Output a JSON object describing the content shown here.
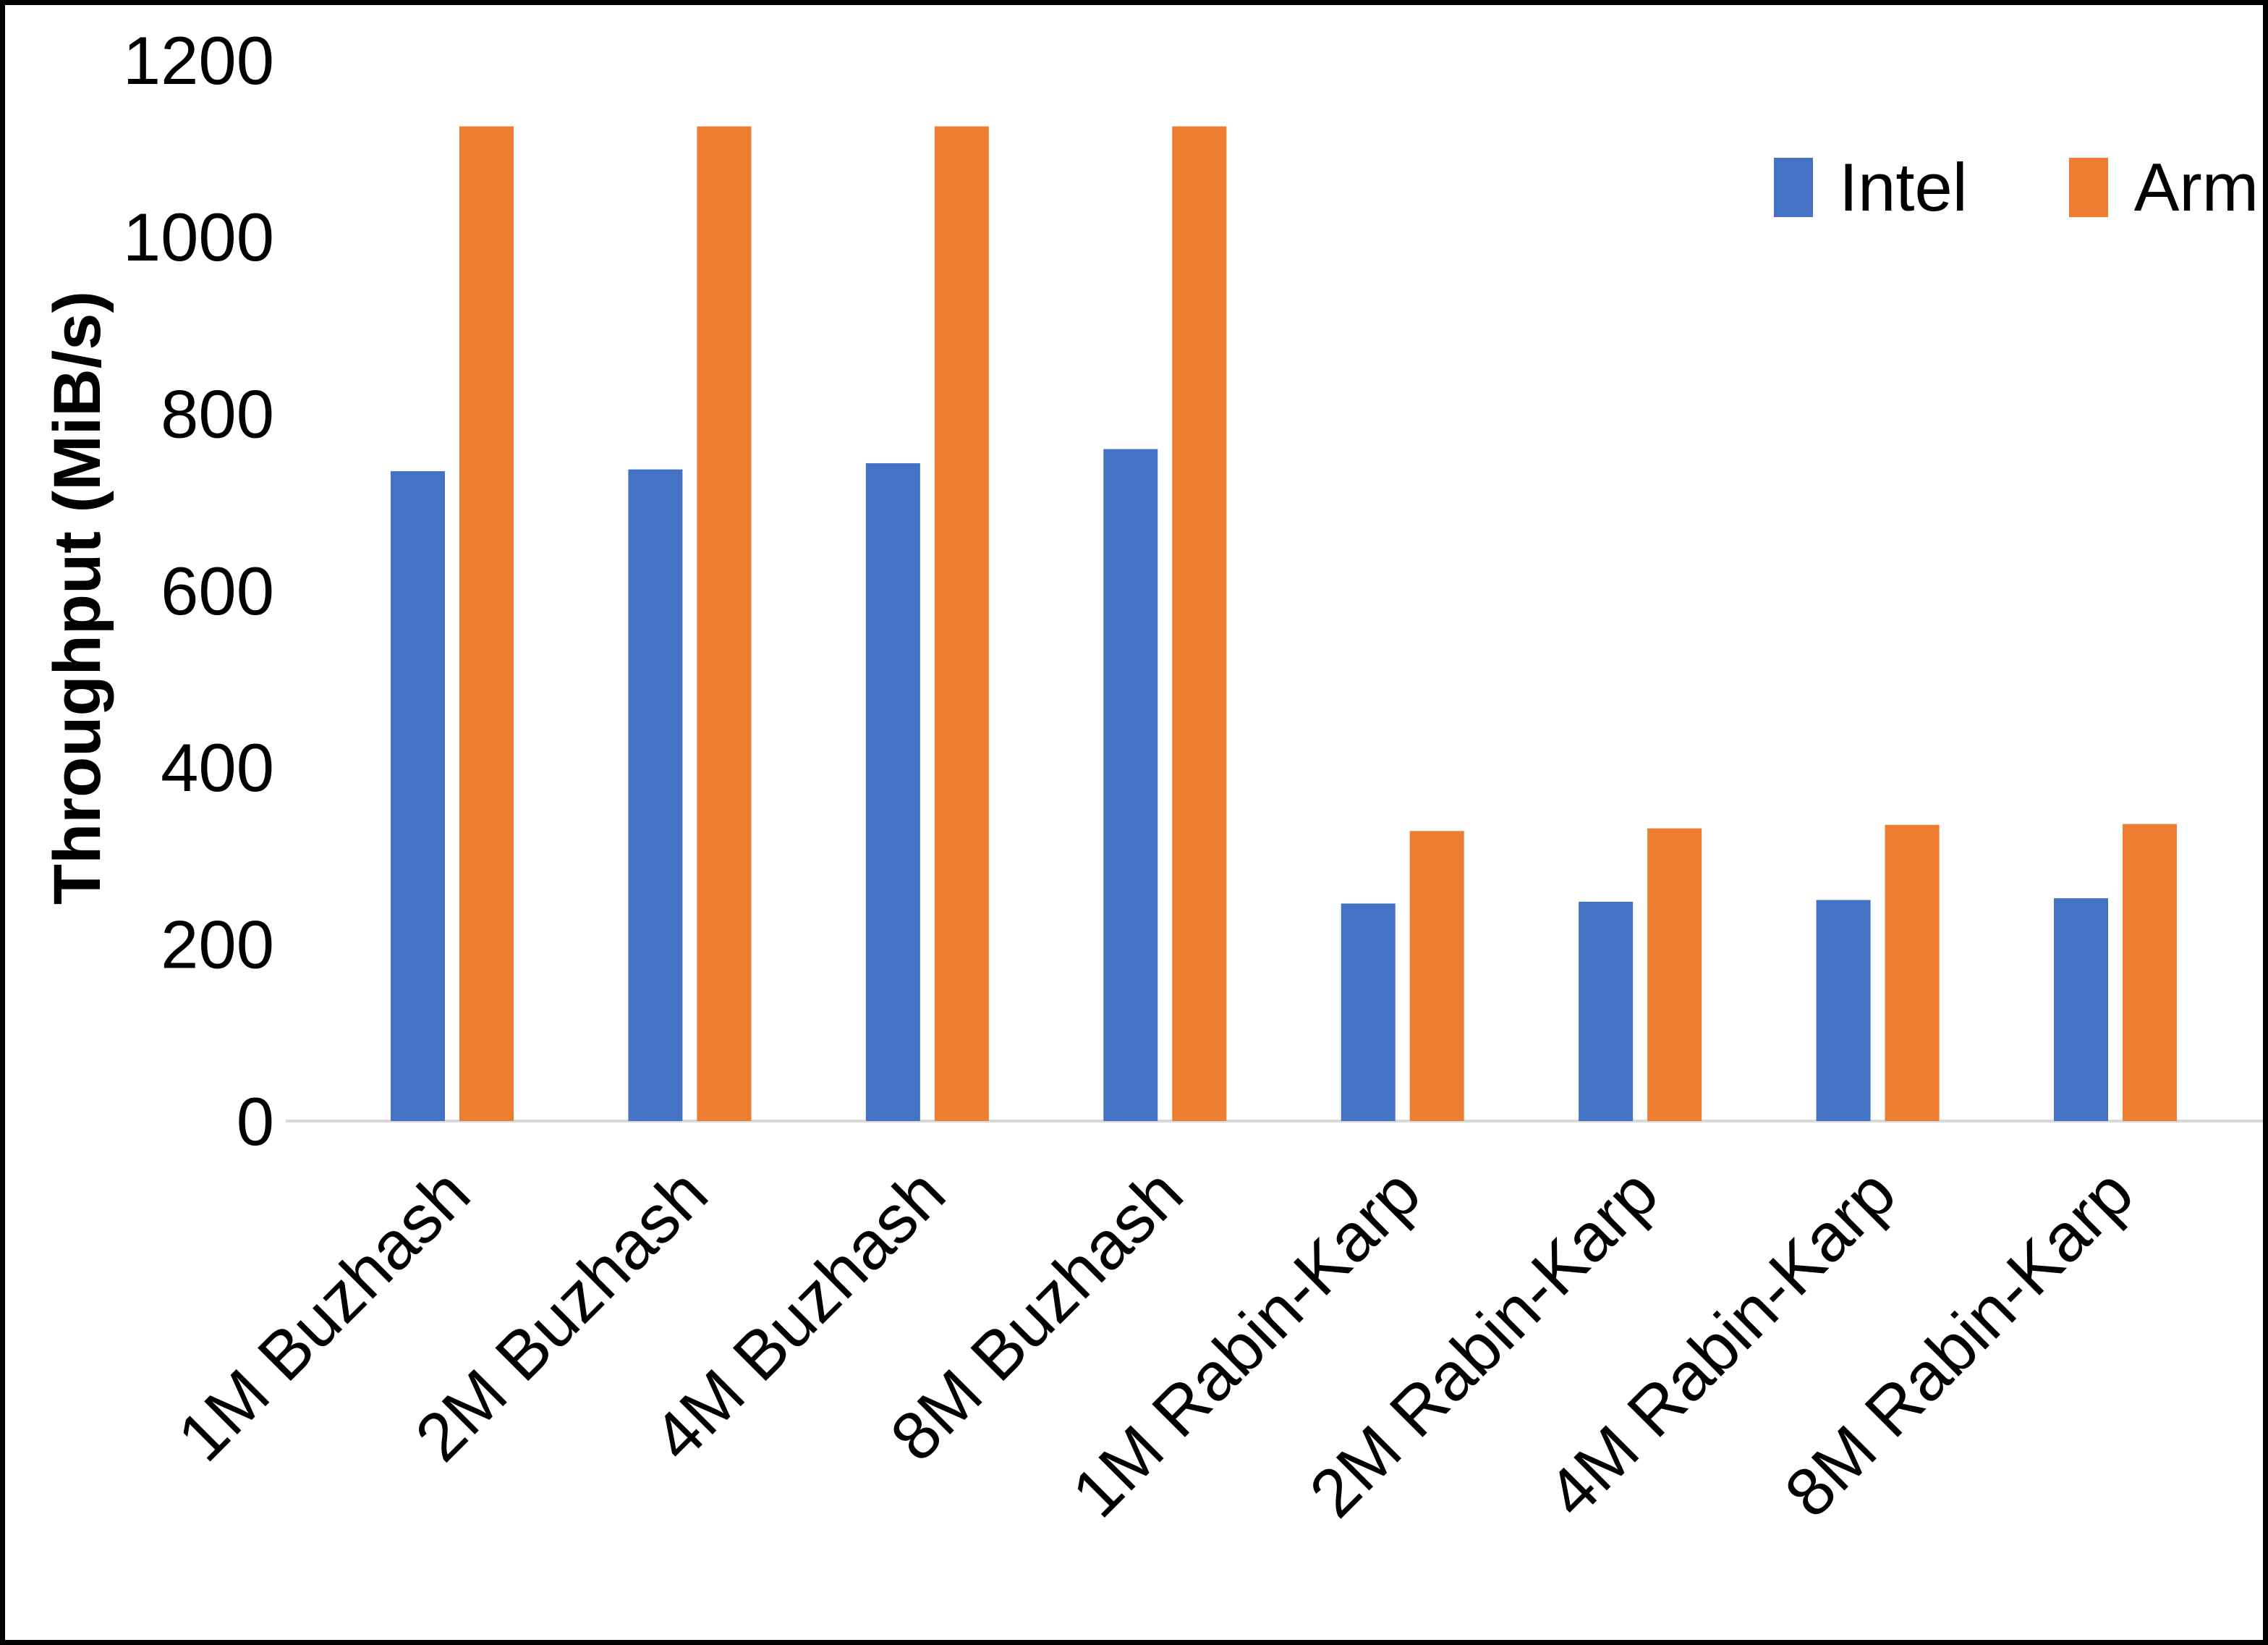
{
  "frame": {
    "border_color": "#000000",
    "background_color": "#ffffff"
  },
  "axis": {
    "baseline_color": "#d9d9d9",
    "text_color": "#000000"
  },
  "chart_data": {
    "type": "bar",
    "title": "",
    "xlabel": "",
    "ylabel": "Throughput (MiB/s)",
    "ylim": [
      0,
      1200
    ],
    "yticks": [
      0,
      200,
      400,
      600,
      800,
      1000,
      1200
    ],
    "grid": false,
    "legend_position": "top-right",
    "categories": [
      "1M Buzhash",
      "2M Buzhash",
      "4M Buzhash",
      "8M Buzhash",
      "1M Rabin-Karp",
      "2M Rabin-Karp",
      "4M Rabin-Karp",
      "8M Rabin-Karp"
    ],
    "series": [
      {
        "name": "Intel",
        "color": "#4472c4",
        "values": [
          735,
          737,
          744,
          760,
          246,
          248,
          250,
          252
        ]
      },
      {
        "name": "Arm",
        "color": "#ed7d31",
        "values": [
          1125,
          1125,
          1125,
          1125,
          328,
          331,
          335,
          336
        ]
      }
    ]
  }
}
